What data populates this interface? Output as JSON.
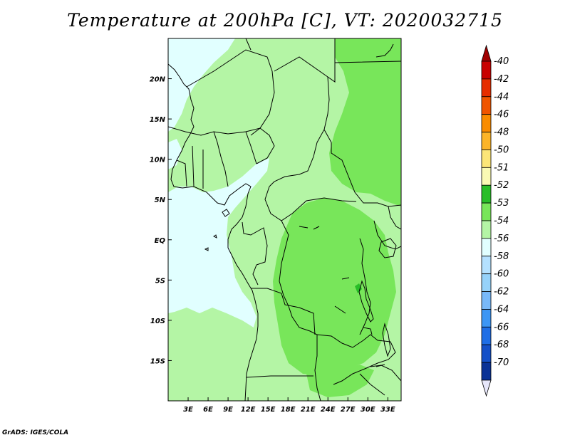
{
  "title": "Temperature at 200hPa [C], VT: 2020032715",
  "credit": "GrADS: IGES/COLA",
  "axes": {
    "lat_labels": [
      {
        "label": "20N",
        "lat": 20
      },
      {
        "label": "15N",
        "lat": 15
      },
      {
        "label": "10N",
        "lat": 10
      },
      {
        "label": "5N",
        "lat": 5
      },
      {
        "label": "EQ",
        "lat": 0
      },
      {
        "label": "5S",
        "lat": -5
      },
      {
        "label": "10S",
        "lat": -10
      },
      {
        "label": "15S",
        "lat": -15
      }
    ],
    "lon_labels": [
      {
        "label": "3E",
        "lon": 3
      },
      {
        "label": "6E",
        "lon": 6
      },
      {
        "label": "9E",
        "lon": 9
      },
      {
        "label": "12E",
        "lon": 12
      },
      {
        "label": "15E",
        "lon": 15
      },
      {
        "label": "18E",
        "lon": 18
      },
      {
        "label": "21E",
        "lon": 21
      },
      {
        "label": "24E",
        "lon": 24
      },
      {
        "label": "27E",
        "lon": 27
      },
      {
        "label": "30E",
        "lon": 30
      },
      {
        "label": "33E",
        "lon": 33
      }
    ],
    "lon_range": [
      0,
      35
    ],
    "lat_range": [
      -20,
      25
    ]
  },
  "colorbar": {
    "levels": [
      {
        "label": "-40",
        "color": "#c80000"
      },
      {
        "label": "-42",
        "color": "#e62d00"
      },
      {
        "label": "-44",
        "color": "#f05500"
      },
      {
        "label": "-46",
        "color": "#fa8c00"
      },
      {
        "label": "-48",
        "color": "#fcb428"
      },
      {
        "label": "-50",
        "color": "#fce678"
      },
      {
        "label": "-51",
        "color": "#fafab4"
      },
      {
        "label": "-52",
        "color": "#28be28"
      },
      {
        "label": "-53",
        "color": "#78e65a"
      },
      {
        "label": "-54",
        "color": "#b4f5a5"
      },
      {
        "label": "-56",
        "color": "#e1ffff"
      },
      {
        "label": "-58",
        "color": "#b4e1ff"
      },
      {
        "label": "-60",
        "color": "#96d2fa"
      },
      {
        "label": "-62",
        "color": "#78b9fa"
      },
      {
        "label": "-64",
        "color": "#3c96f5"
      },
      {
        "label": "-66",
        "color": "#1e6ee6"
      },
      {
        "label": "-68",
        "color": "#1450c8"
      },
      {
        "label": "-70",
        "color": "#0a3296"
      }
    ],
    "top_color": "#a00000",
    "bottom_color": "#e6e6fa"
  }
}
